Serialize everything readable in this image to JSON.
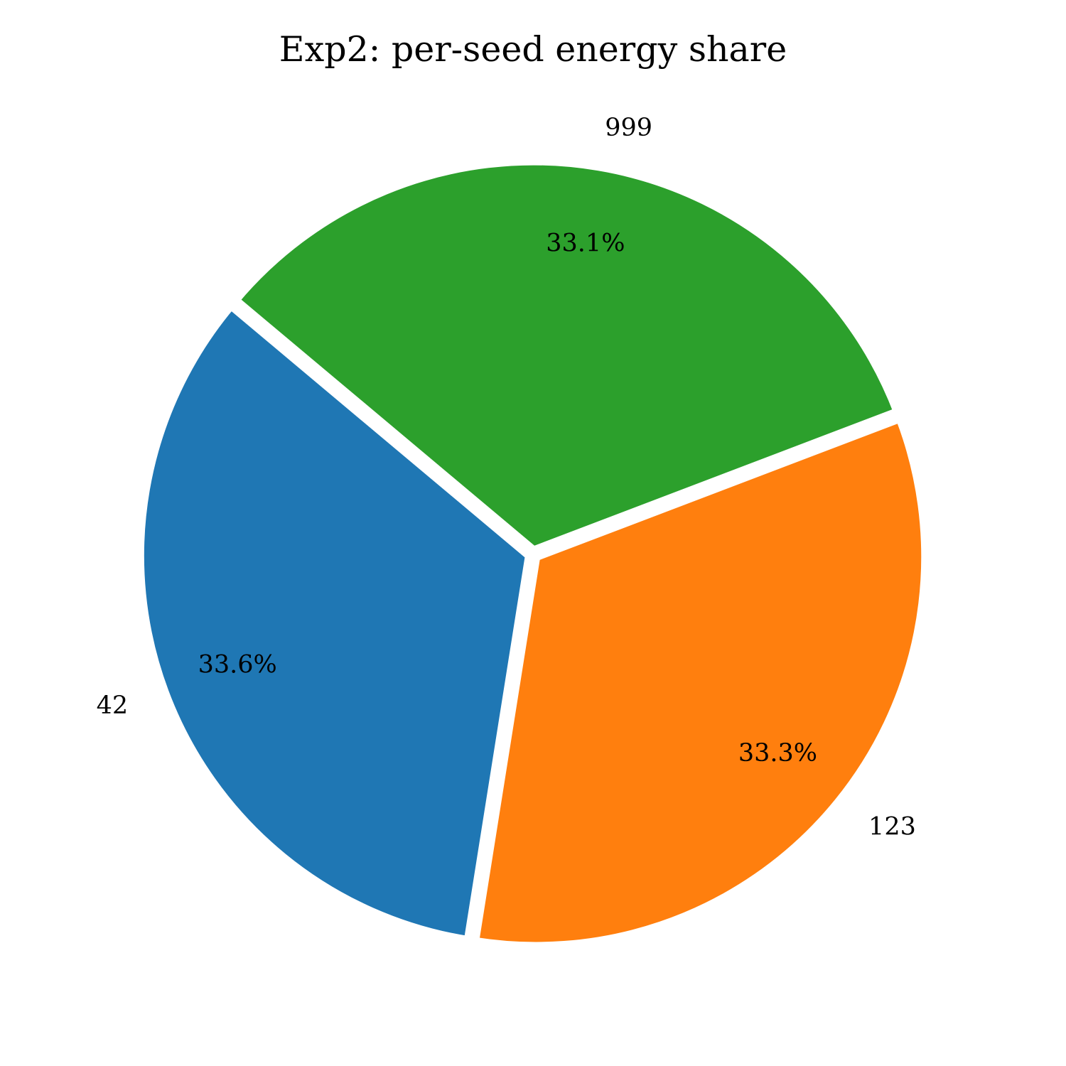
{
  "chart_data": {
    "type": "pie",
    "title": "Exp2: per-seed energy share",
    "start_angle": 140,
    "counterclock": true,
    "explode": [
      0.01,
      0.01,
      0.01
    ],
    "slices": [
      {
        "label": "42",
        "value": 33.6,
        "pct_text": "33.6%",
        "color": "#1f77b4"
      },
      {
        "label": "123",
        "value": 33.3,
        "pct_text": "33.3%",
        "color": "#ff7f0e"
      },
      {
        "label": "999",
        "value": 33.1,
        "pct_text": "33.1%",
        "color": "#2ca02c"
      }
    ]
  }
}
